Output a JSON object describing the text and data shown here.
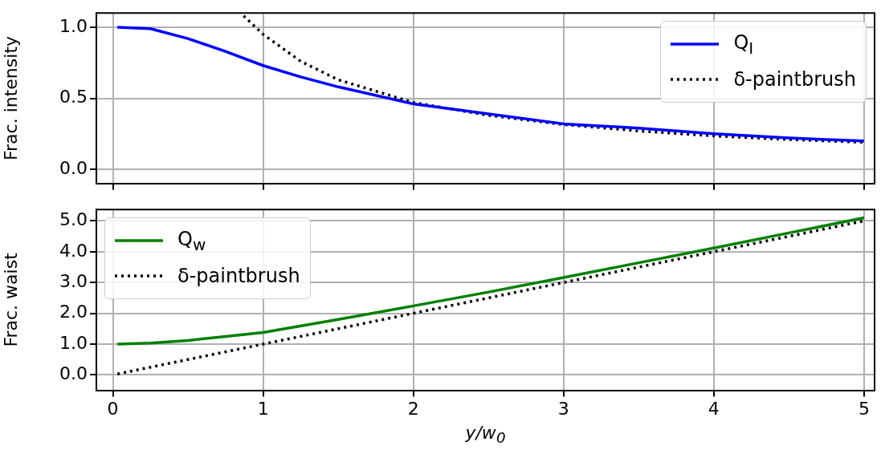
{
  "chart_data": [
    {
      "type": "line",
      "ylabel": "Frac. intensity",
      "xlim": [
        -0.11,
        5.07
      ],
      "ylim": [
        -0.1,
        1.1
      ],
      "xticks": [
        0,
        1,
        2,
        3,
        4,
        5
      ],
      "yticks": [
        {
          "value": 0,
          "label": "0.0"
        },
        {
          "value": 0.5,
          "label": "0.5"
        },
        {
          "value": 1,
          "label": "1.0"
        }
      ],
      "grid": true,
      "legend": "top right",
      "tick_labels": "y",
      "series": [
        {
          "name": "Q$_{I}$",
          "color": "#0000ff",
          "line_style": "solid",
          "x": [
            0.03,
            0.25,
            0.5,
            0.75,
            1,
            1.25,
            1.5,
            2,
            2.5,
            3,
            3.5,
            4,
            4.5,
            5
          ],
          "values": [
            1.0,
            0.99,
            0.92,
            0.83,
            0.73,
            0.65,
            0.58,
            0.46,
            0.39,
            0.32,
            0.29,
            0.25,
            0.22,
            0.2
          ]
        },
        {
          "name": "δ-paintbrush",
          "color": "#000000",
          "line_style": "dotted",
          "x": [
            0.87,
            1,
            1.25,
            1.5,
            2,
            2.5,
            3,
            3.5,
            4,
            4.5,
            5
          ],
          "values": [
            1.08,
            0.95,
            0.76,
            0.63,
            0.47,
            0.38,
            0.315,
            0.27,
            0.235,
            0.21,
            0.19
          ]
        }
      ]
    },
    {
      "type": "line",
      "ylabel": "Frac. waist",
      "xlabel": "y/w$_{0}$",
      "xlim": [
        -0.11,
        5.07
      ],
      "ylim": [
        -0.5,
        5.37
      ],
      "xticks": [
        0,
        1,
        2,
        3,
        4,
        5
      ],
      "yticks": [
        {
          "value": 0,
          "label": "0.0"
        },
        {
          "value": 1,
          "label": "1.0"
        },
        {
          "value": 2,
          "label": "2.0"
        },
        {
          "value": 3,
          "label": "3.0"
        },
        {
          "value": 4,
          "label": "4.0"
        },
        {
          "value": 5,
          "label": "5.0"
        }
      ],
      "grid": true,
      "legend": "top left",
      "series": [
        {
          "name": "Q$_{w}$",
          "color": "#008000",
          "line_style": "solid",
          "x": [
            0.03,
            0.25,
            0.5,
            0.75,
            1,
            1.5,
            2,
            2.5,
            3,
            3.5,
            4,
            4.5,
            5
          ],
          "values": [
            1.0,
            1.03,
            1.12,
            1.25,
            1.38,
            1.8,
            2.24,
            2.69,
            3.16,
            3.64,
            4.12,
            4.61,
            5.1
          ]
        },
        {
          "name": "δ-paintbrush",
          "color": "#000000",
          "line_style": "dotted",
          "x": [
            0.03,
            1,
            2,
            3,
            4,
            5
          ],
          "values": [
            0.03,
            1,
            2,
            3,
            4,
            5
          ]
        }
      ]
    }
  ]
}
